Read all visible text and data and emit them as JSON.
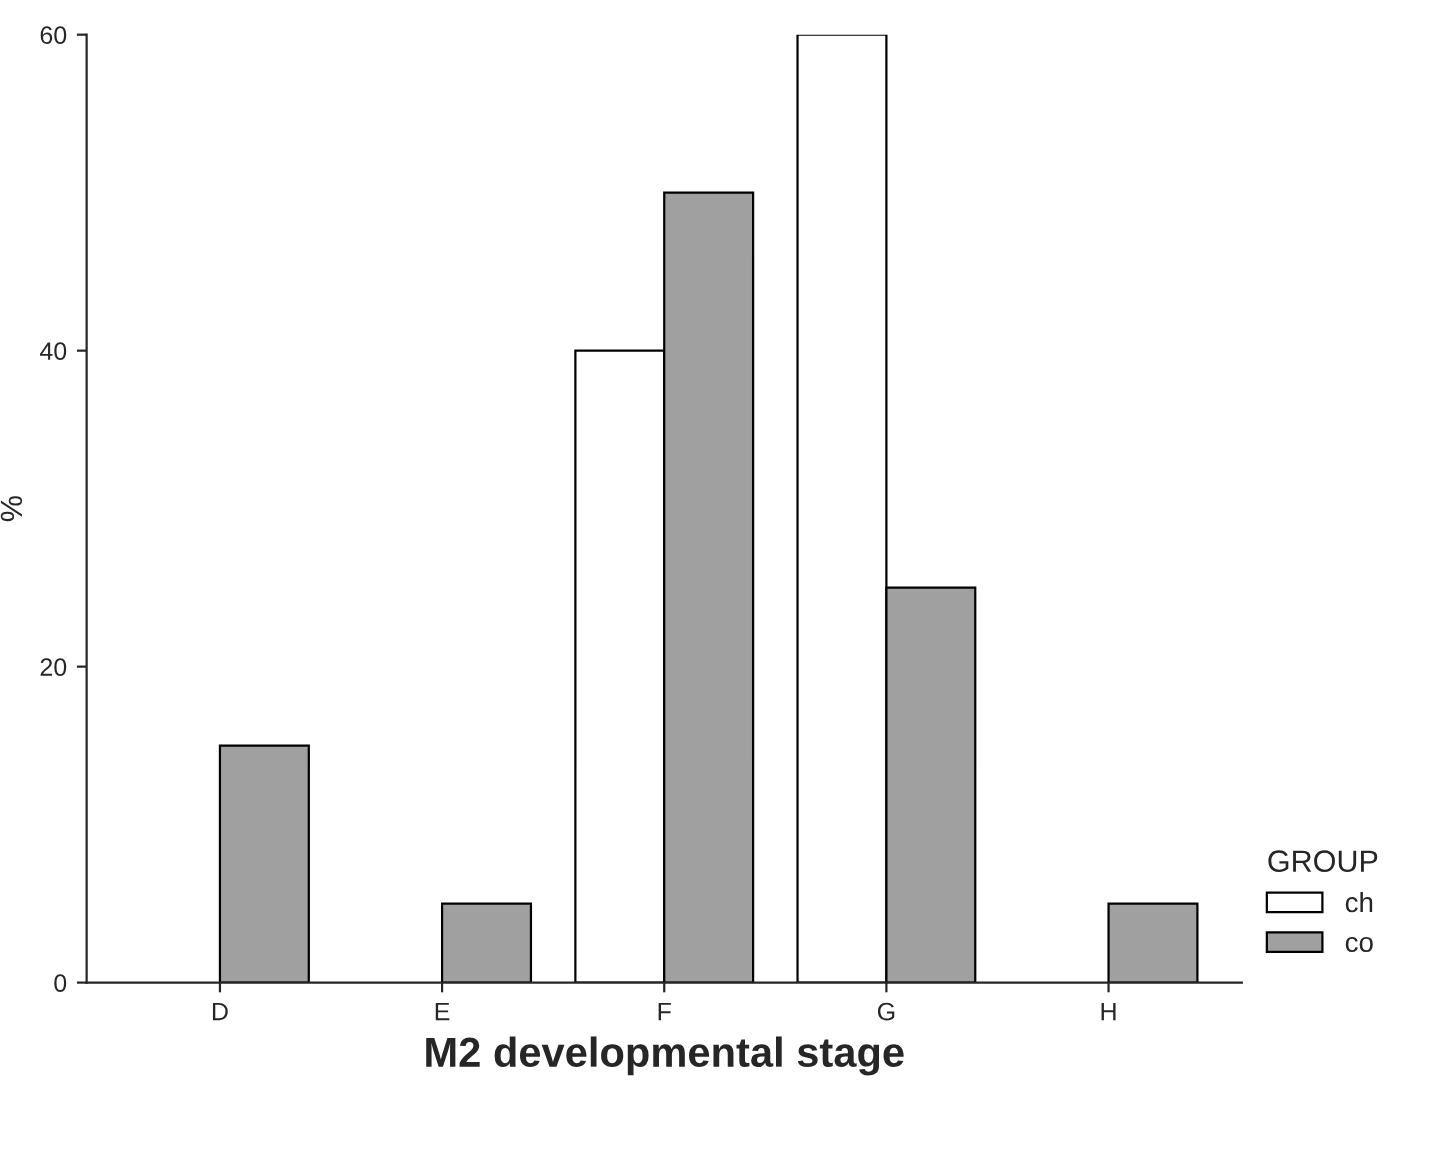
{
  "chart_data": {
    "type": "bar",
    "xlabel": "M2 developmental stage",
    "ylabel": "%",
    "legend_title": "GROUP",
    "categories": [
      "D",
      "E",
      "F",
      "G",
      "H"
    ],
    "series": [
      {
        "name": "ch",
        "color": "#ffffff",
        "values": [
          null,
          null,
          40,
          60,
          null
        ]
      },
      {
        "name": "co",
        "color": "#a0a0a0",
        "values": [
          15,
          5,
          50,
          25,
          5
        ]
      }
    ],
    "ylim": [
      0,
      60
    ],
    "yticks": [
      0,
      20,
      40,
      60
    ],
    "grid": false,
    "legend": "bottom right"
  }
}
